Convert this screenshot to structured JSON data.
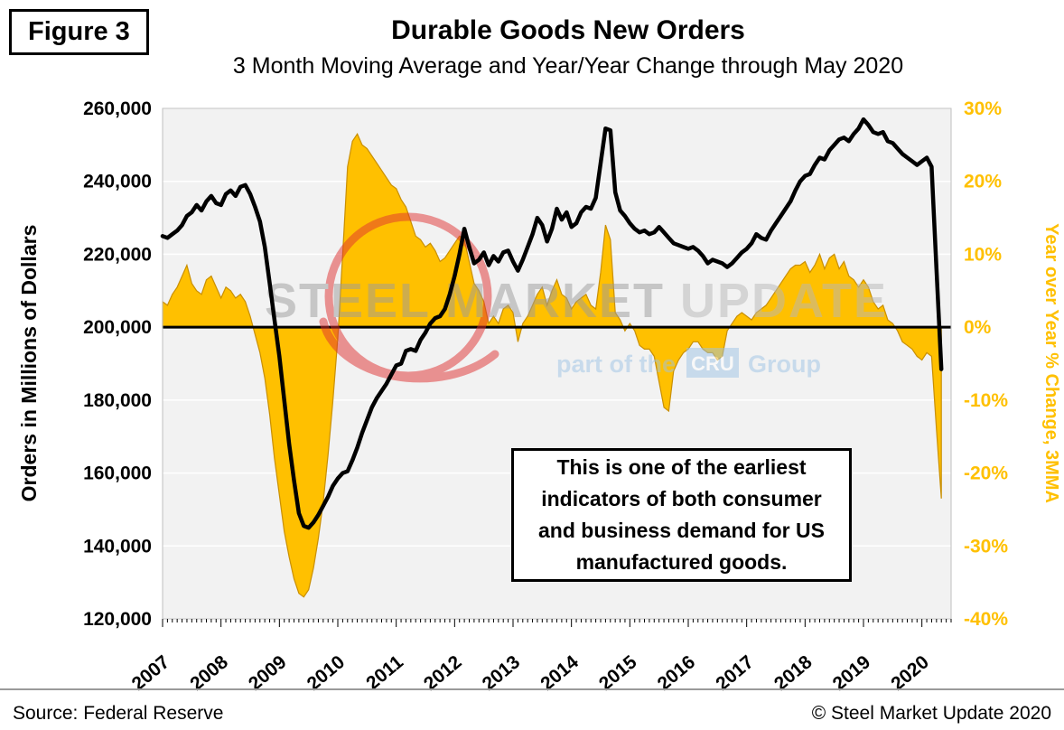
{
  "figure_label": "Figure 3",
  "title": "Durable Goods New Orders",
  "subtitle": "3 Month Moving Average and Year/Year Change through May 2020",
  "annotation": {
    "lines": [
      "This is one of the earliest",
      "indicators of both consumer",
      "and business demand for US",
      "manufactured goods."
    ]
  },
  "watermark": {
    "text_main": "STEEL MARKET",
    "text_light": " UPDATE",
    "sub_prefix": "part of the",
    "sub_box": "CRU",
    "sub_suffix": "Group"
  },
  "footer": {
    "source": "Source: Federal Reserve",
    "copyright": "© Steel Market Update 2020"
  },
  "colors": {
    "orders_line": "#000000",
    "yoy_fill": "#FFC000",
    "yoy_stroke": "#C98F00",
    "right_axis_text": "#FFC000",
    "plot_bg": "#F2F2F2",
    "gridline": "#FFFFFF",
    "plot_border": "#BFBFBF",
    "watermark_red": "#E03131",
    "watermark_gray": "#9C9C9C",
    "watermark_gray_light": "#B8B8B8",
    "watermark_blue": "#9DC3E6"
  },
  "chart_data": {
    "type": "combo line+area, dual axis",
    "x_unit": "monthly, Jan 2007 through May 2020",
    "last_point": "May 2020",
    "x_axis_ticks": [
      "2007",
      "2008",
      "2009",
      "2010",
      "2011",
      "2012",
      "2013",
      "2014",
      "2015",
      "2016",
      "2017",
      "2018",
      "2019",
      "2020"
    ],
    "left_axis": {
      "title": "Orders in Millions of Dollars",
      "min": 120000,
      "max": 260000,
      "tick_step": 20000,
      "tick_labels": [
        "120,000",
        "140,000",
        "160,000",
        "180,000",
        "200,000",
        "220,000",
        "240,000",
        "260,000"
      ]
    },
    "right_axis": {
      "title": "Year over Year % Change, 3MMA",
      "min": -40,
      "max": 30,
      "tick_step": 10,
      "tick_labels": [
        "-40%",
        "-30%",
        "-20%",
        "-10%",
        "0%",
        "10%",
        "20%",
        "30%"
      ]
    },
    "series": [
      {
        "name": "Durable Goods New Orders, 3MMA (left axis, millions of dollars)",
        "type": "line",
        "axis": "left",
        "values": [
          225000,
          224500,
          225500,
          226500,
          228000,
          230500,
          231500,
          233500,
          232000,
          234500,
          236000,
          234000,
          233500,
          236500,
          237500,
          236000,
          238500,
          239000,
          236500,
          233000,
          229000,
          222000,
          212000,
          202000,
          192000,
          180000,
          168000,
          158000,
          149000,
          145500,
          145000,
          146500,
          148500,
          151000,
          153500,
          156500,
          158500,
          160000,
          160500,
          163500,
          167000,
          171000,
          174500,
          178000,
          180500,
          182500,
          184500,
          187000,
          189500,
          190000,
          193500,
          194000,
          193500,
          196500,
          198500,
          201000,
          202500,
          203000,
          205000,
          209000,
          214000,
          220000,
          227000,
          222000,
          217500,
          218500,
          220500,
          217000,
          219500,
          218000,
          220500,
          221000,
          218000,
          215500,
          218500,
          222000,
          225500,
          230000,
          228000,
          223500,
          227000,
          232500,
          229500,
          231500,
          227500,
          228500,
          231500,
          233000,
          232500,
          235500,
          245000,
          254500,
          254000,
          237000,
          232000,
          230500,
          228500,
          227000,
          226000,
          226500,
          225500,
          226000,
          227500,
          226000,
          224500,
          223000,
          222500,
          222000,
          221500,
          222000,
          221000,
          219500,
          217500,
          218500,
          218000,
          217500,
          216500,
          217500,
          219000,
          220500,
          221500,
          223000,
          225500,
          224500,
          224000,
          226500,
          228500,
          230500,
          232500,
          234500,
          237500,
          240000,
          241500,
          242000,
          244500,
          246500,
          246000,
          248500,
          250000,
          251500,
          252000,
          251000,
          253000,
          254500,
          257000,
          255500,
          253500,
          253000,
          253500,
          251000,
          250500,
          249000,
          247500,
          246500,
          245500,
          244500,
          245500,
          246500,
          244000,
          216000,
          188500
        ]
      },
      {
        "name": "Year over Year % Change, 3MMA (right axis, percent)",
        "type": "area",
        "axis": "right",
        "values": [
          3.5,
          3,
          4.5,
          5.5,
          7,
          8.5,
          6,
          5,
          4.5,
          6.5,
          7,
          5.5,
          4,
          5.5,
          5,
          4,
          4.5,
          3.5,
          1.5,
          -1,
          -3.5,
          -7,
          -12,
          -18,
          -23,
          -28,
          -31.5,
          -34.5,
          -36.5,
          -37,
          -36,
          -33,
          -29,
          -24,
          -17.5,
          -10,
          -1.5,
          10,
          22,
          25.5,
          26.5,
          25,
          24.5,
          23.5,
          22.5,
          21.5,
          20.5,
          19.5,
          19,
          17.5,
          16.5,
          14.5,
          12.5,
          12,
          11,
          11.5,
          10.5,
          9,
          9.5,
          10.5,
          11.5,
          12.5,
          12,
          9,
          6,
          5,
          3.5,
          0.5,
          1.5,
          0.5,
          2.5,
          3,
          2,
          -2,
          0.5,
          1.5,
          3,
          4.5,
          5.5,
          3,
          5,
          6.5,
          4.5,
          4,
          2.5,
          3.5,
          4,
          4.5,
          3,
          2.5,
          7.5,
          14,
          12,
          2,
          1,
          -0.5,
          0.5,
          -0.5,
          -2.5,
          -3,
          -3,
          -4,
          -7.5,
          -11,
          -11.5,
          -6,
          -4.5,
          -3.5,
          -3,
          -2,
          -2,
          -3,
          -3.5,
          -3.5,
          -4.5,
          -4,
          -0.5,
          0.5,
          1.5,
          2,
          1.5,
          1,
          2,
          2.5,
          3,
          4,
          5,
          6,
          7,
          8,
          8.5,
          8.5,
          9,
          7.5,
          8.5,
          10,
          8,
          9.5,
          10,
          8,
          9,
          7,
          6.5,
          5.5,
          6.5,
          5.5,
          3.5,
          2.5,
          3,
          1,
          0.5,
          -0.5,
          -2,
          -2.5,
          -3,
          -4,
          -4.5,
          -3.5,
          -4,
          -14,
          -23.5
        ]
      }
    ]
  }
}
